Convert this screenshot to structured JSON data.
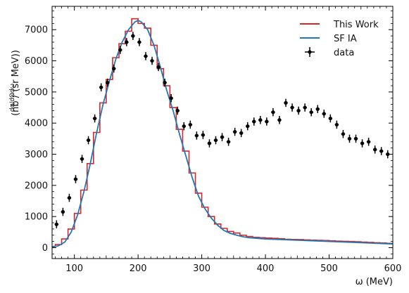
{
  "chart_data": {
    "type": "line",
    "xlabel": "ω (MeV)",
    "ylabel_main": "(nb / (sr MeV))",
    "ylabel_frac": "dσ/dΩdω",
    "xlim": [
      65,
      600
    ],
    "ylim": [
      -350,
      7750
    ],
    "xticks": [
      100,
      200,
      300,
      400,
      500,
      600
    ],
    "yticks": [
      0,
      1000,
      2000,
      3000,
      4000,
      5000,
      6000,
      7000
    ],
    "legend_position": "top-right",
    "series": [
      {
        "name": "This Work",
        "kind": "step",
        "color": "#d62728",
        "bin_width": 10,
        "x": [
          65,
          75,
          85,
          95,
          105,
          115,
          125,
          135,
          145,
          155,
          165,
          175,
          185,
          195,
          205,
          215,
          225,
          235,
          245,
          255,
          265,
          275,
          285,
          295,
          305,
          315,
          325,
          335,
          345,
          355,
          365,
          375,
          385,
          395,
          405,
          415,
          425,
          435,
          445,
          455,
          465,
          475,
          485,
          495,
          505,
          515,
          525,
          535,
          545,
          555,
          565,
          575,
          585,
          595
        ],
        "y": [
          40,
          100,
          280,
          600,
          1100,
          1850,
          2700,
          3700,
          4650,
          5400,
          6100,
          6550,
          6950,
          7350,
          7200,
          7050,
          6500,
          5750,
          5200,
          4500,
          3800,
          3100,
          2400,
          1750,
          1300,
          1000,
          760,
          620,
          520,
          470,
          400,
          360,
          330,
          320,
          310,
          300,
          285,
          270,
          265,
          260,
          250,
          240,
          235,
          230,
          220,
          210,
          205,
          200,
          190,
          180,
          170,
          160,
          150,
          140
        ]
      },
      {
        "name": "SF IA",
        "kind": "line",
        "color": "#1f77b4",
        "x": [
          65,
          75,
          85,
          95,
          105,
          115,
          125,
          135,
          145,
          155,
          165,
          175,
          185,
          195,
          200,
          205,
          215,
          225,
          235,
          245,
          255,
          265,
          275,
          285,
          295,
          305,
          315,
          325,
          335,
          345,
          355,
          365,
          375,
          400,
          450,
          500,
          550,
          600
        ],
        "y": [
          20,
          60,
          180,
          500,
          1050,
          1800,
          2700,
          3700,
          4600,
          5350,
          6050,
          6600,
          7000,
          7250,
          7300,
          7250,
          7000,
          6500,
          5800,
          5050,
          4400,
          3650,
          2950,
          2250,
          1650,
          1250,
          950,
          720,
          550,
          460,
          400,
          350,
          320,
          280,
          240,
          200,
          160,
          120
        ]
      },
      {
        "name": "data",
        "kind": "errorbar",
        "color": "#000000",
        "x": [
          72,
          82,
          92,
          102,
          112,
          122,
          132,
          142,
          152,
          162,
          172,
          182,
          192,
          202,
          212,
          222,
          232,
          242,
          252,
          262,
          272,
          282,
          292,
          302,
          312,
          322,
          332,
          342,
          352,
          362,
          372,
          382,
          392,
          402,
          412,
          422,
          432,
          442,
          452,
          462,
          472,
          482,
          492,
          502,
          512,
          522,
          532,
          542,
          552,
          562,
          572,
          582,
          592
        ],
        "y": [
          750,
          1150,
          1600,
          2200,
          2850,
          3450,
          4150,
          5150,
          5300,
          5750,
          6350,
          6600,
          6800,
          6600,
          6150,
          6000,
          5800,
          5300,
          4800,
          4400,
          3900,
          3950,
          3600,
          3620,
          3350,
          3450,
          3550,
          3400,
          3720,
          3680,
          3900,
          4050,
          4100,
          4050,
          4350,
          4100,
          4650,
          4500,
          4400,
          4500,
          4350,
          4450,
          4300,
          4150,
          3950,
          3650,
          3500,
          3500,
          3350,
          3400,
          3150,
          3100,
          3000
        ],
        "yerr": 130,
        "xerr": 3
      }
    ]
  },
  "legend": {
    "this_work": "This Work",
    "sf_ia": "SF IA",
    "data": "data"
  }
}
